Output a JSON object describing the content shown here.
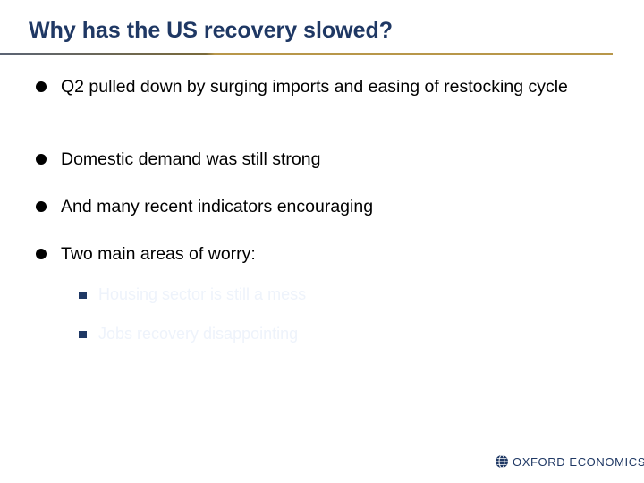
{
  "slide": {
    "title": "Why has the US recovery slowed?",
    "bullets": [
      "Q2 pulled down by surging imports and easing of restocking cycle",
      "Domestic demand was still strong",
      "And many recent indicators encouraging",
      "Two main areas of worry:"
    ],
    "sub_bullets": [
      "Housing sector is still a mess",
      "Jobs recovery disappointing"
    ]
  },
  "logo": {
    "text": "OXFORD ECONOMICS",
    "icon": "globe-icon"
  },
  "colors": {
    "title": "#1f3864",
    "rule_left": "#5b6475",
    "rule_right": "#b8974a",
    "sub_text": "#eef3fb",
    "sub_marker": "#1f3864"
  }
}
